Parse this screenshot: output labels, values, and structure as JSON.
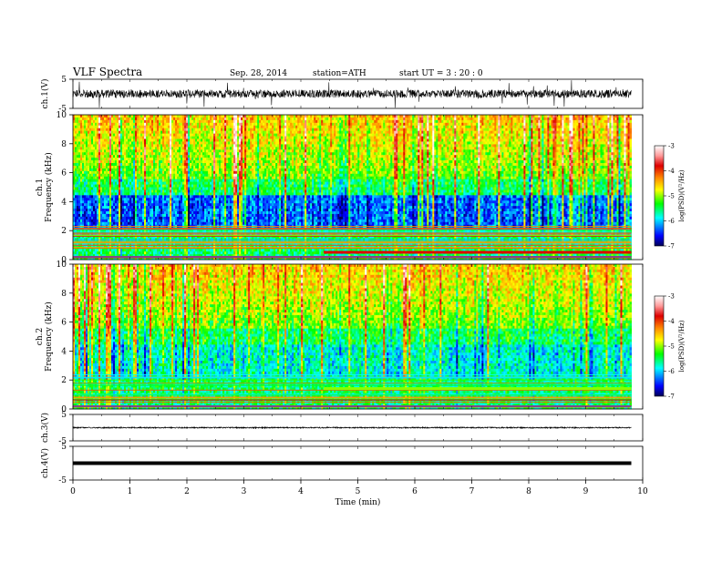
{
  "header": {
    "title": "VLF  Spectra",
    "date": "Sep. 28, 2014",
    "station": "station=ATH",
    "start": "start  UT  =   3  : 20 : 0"
  },
  "chart_data": {
    "type": "heatmap",
    "x_label": "Time  (min)",
    "x_range": [
      0,
      10
    ],
    "x_ticks": [
      "0",
      "1",
      "2",
      "3",
      "4",
      "5",
      "6",
      "7",
      "8",
      "9",
      "10"
    ],
    "data_end_min": 9.8,
    "colorbar": {
      "label": "log(PSD)(V²/Hz)",
      "range": [
        -7,
        -3
      ],
      "ticks": [
        "-3",
        "-4",
        "-5",
        "-6",
        "-7"
      ],
      "colors": [
        "#ffffff",
        "#ff9999",
        "#dd0000",
        "#ff8800",
        "#ffff00",
        "#00ff00",
        "#00ffff",
        "#0000ff",
        "#000055"
      ]
    },
    "panels": [
      {
        "id": "ch1-waveform",
        "kind": "waveform",
        "ylabel": "ch.1(V)",
        "yrange": [
          -5,
          5
        ],
        "y_ticks": [
          "5",
          "-5"
        ],
        "amplitude": "noisy"
      },
      {
        "id": "ch1-spectrogram",
        "kind": "spectrogram",
        "ylabel_1": "ch.1",
        "ylabel_2": "Frequency  (kHz)",
        "yrange": [
          0,
          10
        ],
        "y_ticks": [
          "10",
          "8",
          "6",
          "4",
          "2",
          "0"
        ]
      },
      {
        "id": "ch2-spectrogram",
        "kind": "spectrogram",
        "ylabel_1": "ch.2",
        "ylabel_2": "Frequency  (kHz)",
        "yrange": [
          0,
          10
        ],
        "y_ticks": [
          "10",
          "8",
          "6",
          "4",
          "2",
          "0"
        ]
      },
      {
        "id": "ch3-waveform",
        "kind": "waveform",
        "ylabel": "ch.3(V)",
        "yrange": [
          -5,
          5
        ],
        "y_ticks": [
          "5",
          "-5"
        ],
        "amplitude": "flat"
      },
      {
        "id": "ch4-waveform",
        "kind": "waveform",
        "ylabel": "ch.4(V)",
        "yrange": [
          -5,
          5
        ],
        "y_ticks": [
          "5",
          "-5"
        ],
        "amplitude": "thick"
      }
    ]
  }
}
